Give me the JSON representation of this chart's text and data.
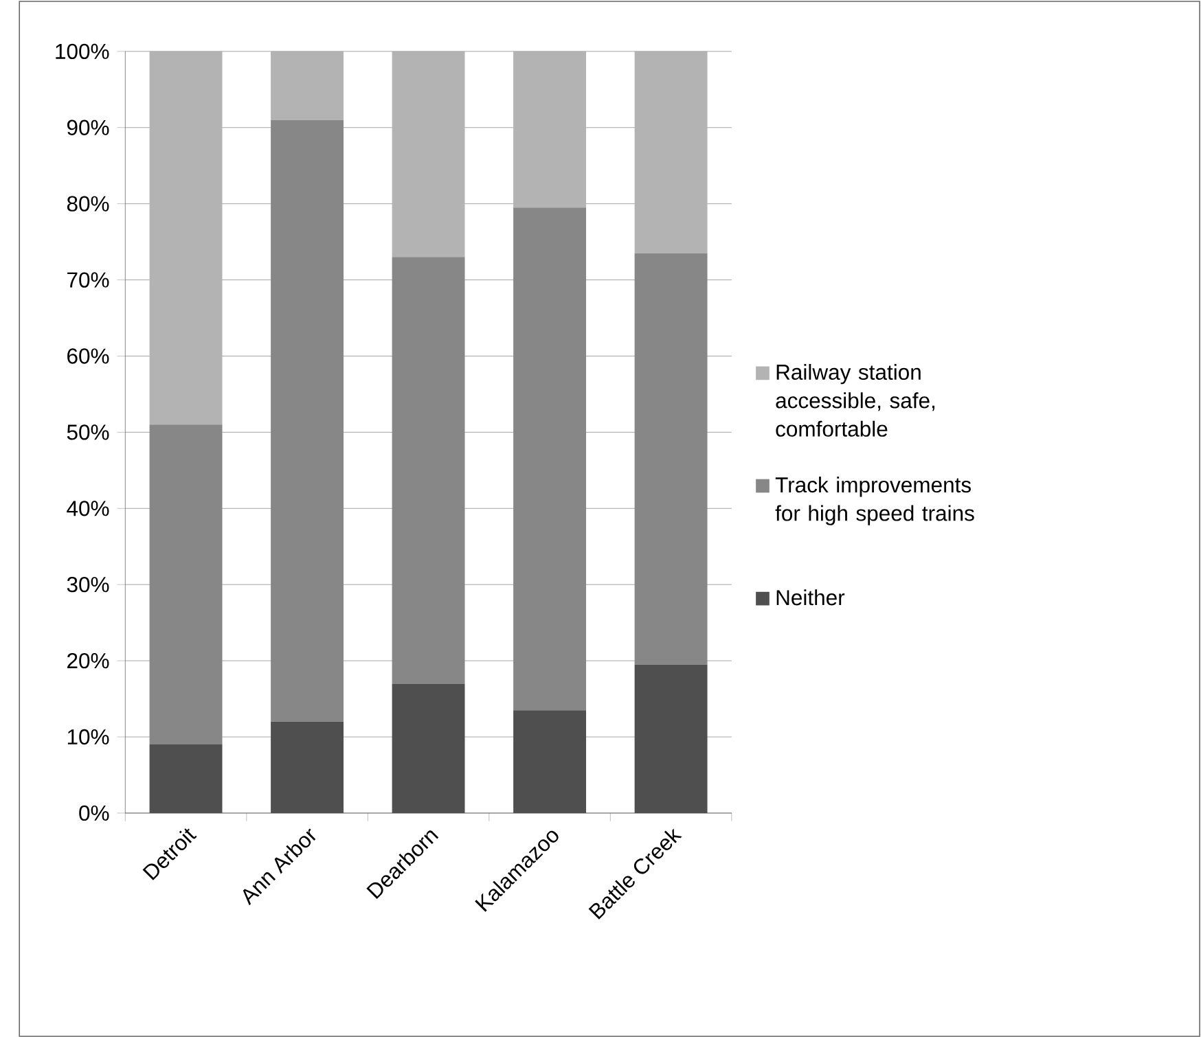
{
  "chart_data": {
    "type": "bar",
    "stacked": true,
    "categories": [
      "Detroit",
      "Ann Arbor",
      "Dearborn",
      "Kalamazoo",
      "Battle Creek"
    ],
    "series": [
      {
        "name": "Neither",
        "color": "#4f4f4f",
        "values": [
          9,
          12,
          17,
          13.5,
          19.5
        ]
      },
      {
        "name": "Track improvements for high speed trains",
        "color": "#878787",
        "values": [
          42,
          79,
          56,
          66,
          54
        ]
      },
      {
        "name": "Railway station accessible, safe, comfortable",
        "color": "#b3b3b3",
        "values": [
          49,
          9,
          27,
          20.5,
          26.5
        ]
      }
    ],
    "ylim": [
      0,
      100
    ],
    "yticks": [
      {
        "value": 0,
        "label": "0%"
      },
      {
        "value": 10,
        "label": "10%"
      },
      {
        "value": 20,
        "label": "20%"
      },
      {
        "value": 30,
        "label": "30%"
      },
      {
        "value": 40,
        "label": "40%"
      },
      {
        "value": 50,
        "label": "50%"
      },
      {
        "value": 60,
        "label": "60%"
      },
      {
        "value": 70,
        "label": "70%"
      },
      {
        "value": 80,
        "label": "80%"
      },
      {
        "value": 90,
        "label": "90%"
      },
      {
        "value": 100,
        "label": "100%"
      }
    ],
    "grid": "y",
    "legend": "right"
  }
}
